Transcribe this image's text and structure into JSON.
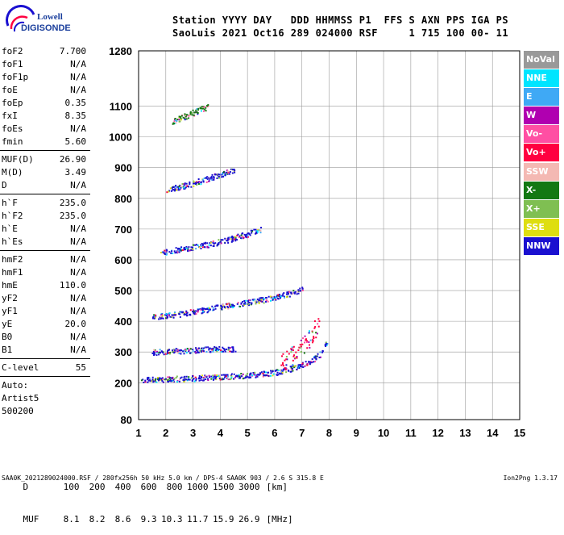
{
  "logo": {
    "line1": "Lowell",
    "line2": "DIGISONDE"
  },
  "header": {
    "line1": "Station YYYY DAY   DDD HHMMSS P1  FFS S AXN PPS IGA PS",
    "line2": "SaoLuis 2021 Oct16 289 024000 RSF     1 715 100 00- 11"
  },
  "params": {
    "groups": [
      [
        [
          "foF2",
          "7.700"
        ],
        [
          "foF1",
          "N/A"
        ],
        [
          "foF1p",
          "N/A"
        ],
        [
          "foE",
          "N/A"
        ],
        [
          "foEp",
          "0.35"
        ],
        [
          "fxI",
          "8.35"
        ],
        [
          "foEs",
          "N/A"
        ],
        [
          "fmin",
          "5.60"
        ]
      ],
      [
        [
          "MUF(D)",
          "26.90"
        ],
        [
          "M(D)",
          "3.49"
        ],
        [
          "D",
          "N/A"
        ]
      ],
      [
        [
          "h`F",
          "235.0"
        ],
        [
          "h`F2",
          "235.0"
        ],
        [
          "h`E",
          "N/A"
        ],
        [
          "h`Es",
          "N/A"
        ]
      ],
      [
        [
          "hmF2",
          "N/A"
        ],
        [
          "hmF1",
          "N/A"
        ],
        [
          "hmE",
          "110.0"
        ],
        [
          "yF2",
          "N/A"
        ],
        [
          "yF1",
          "N/A"
        ],
        [
          "yE",
          "20.0"
        ],
        [
          "B0",
          "N/A"
        ],
        [
          "B1",
          "N/A"
        ]
      ],
      [
        [
          "C-level",
          "55"
        ]
      ]
    ],
    "auto": [
      "Auto:",
      "Artist5",
      "500200"
    ]
  },
  "legend": [
    {
      "label": "NoVal",
      "color": "#999999"
    },
    {
      "label": "NNE",
      "color": "#00e5ff"
    },
    {
      "label": "E",
      "color": "#3fa9f5"
    },
    {
      "label": "W",
      "color": "#b000b0"
    },
    {
      "label": "Vo-",
      "color": "#ff4fa3"
    },
    {
      "label": "Vo+",
      "color": "#ff0040"
    },
    {
      "label": "SSW",
      "color": "#f4b9b3"
    },
    {
      "label": "X-",
      "color": "#137813"
    },
    {
      "label": "X+",
      "color": "#7fbf52"
    },
    {
      "label": "SSE",
      "color": "#dede10"
    },
    {
      "label": "NNW",
      "color": "#1a10d0"
    }
  ],
  "muf_table": {
    "row1": {
      "label": "D",
      "values": [
        "100",
        "200",
        "400",
        "600",
        "800",
        "1000",
        "1500",
        "3000"
      ],
      "unit": "[km]"
    },
    "row2": {
      "label": "MUF",
      "values": [
        "8.1",
        "8.2",
        "8.6",
        "9.3",
        "10.3",
        "11.7",
        "15.9",
        "26.9"
      ],
      "unit": "[MHz]"
    }
  },
  "footer": "SAA0K_2021289024000.RSF / 280fx256h 50 kHz 5.0 km / DPS-4 SAA0K 903 / 2.6 S 315.8 E",
  "version": "Ion2Png 1.3.17",
  "chart_data": {
    "type": "scatter",
    "title": "",
    "xlabel": "",
    "ylabel": "",
    "xlim": [
      1,
      15
    ],
    "ylim": [
      80,
      1280
    ],
    "x_ticks": [
      1,
      2,
      3,
      4,
      5,
      6,
      7,
      8,
      9,
      10,
      11,
      12,
      13,
      14,
      15
    ],
    "y_ticks": [
      80,
      200,
      300,
      400,
      500,
      600,
      700,
      800,
      900,
      1000,
      1100,
      1280
    ],
    "grid": true,
    "traces": [
      {
        "name": "F-trace",
        "color": "#1a10d0",
        "points": [
          [
            1.1,
            210
          ],
          [
            2,
            213
          ],
          [
            3,
            216
          ],
          [
            4,
            220
          ],
          [
            5,
            225
          ],
          [
            6,
            235
          ],
          [
            6.5,
            245
          ],
          [
            7,
            258
          ],
          [
            7.4,
            275
          ],
          [
            7.7,
            300
          ],
          [
            7.9,
            340
          ]
        ]
      },
      {
        "name": "F-trace 2nd hop",
        "color": "#1a10d0",
        "points": [
          [
            1.5,
            415
          ],
          [
            2.5,
            425
          ],
          [
            3.5,
            440
          ],
          [
            4.5,
            455
          ],
          [
            5.5,
            470
          ],
          [
            6.5,
            490
          ],
          [
            7,
            505
          ]
        ]
      },
      {
        "name": "F-trace 3rd hop",
        "color": "#1a10d0",
        "points": [
          [
            1.8,
            625
          ],
          [
            2.5,
            635
          ],
          [
            3.2,
            645
          ],
          [
            4,
            660
          ],
          [
            4.8,
            680
          ],
          [
            5.5,
            700
          ]
        ]
      },
      {
        "name": "F-trace 4th hop",
        "color": "#1a10d0",
        "points": [
          [
            2,
            830
          ],
          [
            2.5,
            840
          ],
          [
            3,
            850
          ],
          [
            3.5,
            865
          ],
          [
            4,
            880
          ],
          [
            4.5,
            895
          ]
        ]
      },
      {
        "name": "F-trace 5th hop",
        "color": "#137813",
        "points": [
          [
            2.2,
            1050
          ],
          [
            2.6,
            1065
          ],
          [
            3,
            1080
          ],
          [
            3.5,
            1100
          ]
        ]
      },
      {
        "name": "Es trace",
        "color": "#1a10d0",
        "points": [
          [
            1.5,
            300
          ],
          [
            2.5,
            305
          ],
          [
            3.5,
            310
          ],
          [
            4.5,
            312
          ]
        ]
      },
      {
        "name": "Vo spread",
        "color": "#ff0040",
        "points": [
          [
            6.2,
            260
          ],
          [
            6.5,
            280
          ],
          [
            6.8,
            300
          ],
          [
            7,
            320
          ],
          [
            7.2,
            340
          ],
          [
            7.4,
            360
          ],
          [
            7.5,
            380
          ],
          [
            7.6,
            400
          ]
        ]
      }
    ]
  }
}
